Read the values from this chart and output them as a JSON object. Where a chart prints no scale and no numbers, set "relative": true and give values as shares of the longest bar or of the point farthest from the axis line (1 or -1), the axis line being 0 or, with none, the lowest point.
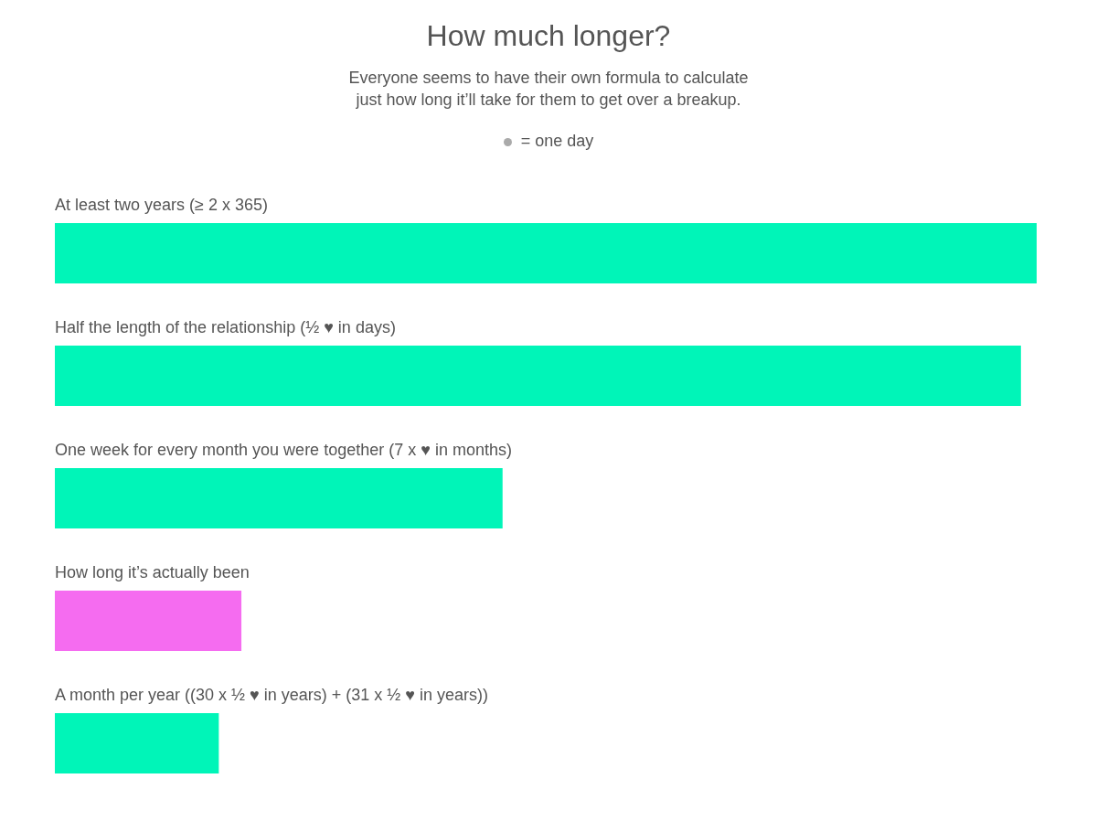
{
  "chart_data": {
    "type": "bar",
    "orientation": "horizontal",
    "relative": true,
    "title": "How much longer?",
    "subtitle": "Everyone seems to have their own formula to calculate\njust how long it’ll take for them to get over a breakup.",
    "annotations": [
      "= one day"
    ],
    "categories": [
      "At least two years (≥ 2 x 365)",
      "Half the length of the relationship (½ ♥ in days)",
      "One week for every month you were together (7 x ♥ in months)",
      "How long it’s actually been",
      "A month per year ((30 x ½ ♥ in years) + (31 x ½ ♥ in years))"
    ],
    "values": [
      1,
      0.984,
      0.456,
      0.19,
      0.167
    ],
    "colors": [
      "#00f5b8",
      "#00f5b8",
      "#00f5b8",
      "#f56cf0",
      "#00f5b8"
    ]
  }
}
